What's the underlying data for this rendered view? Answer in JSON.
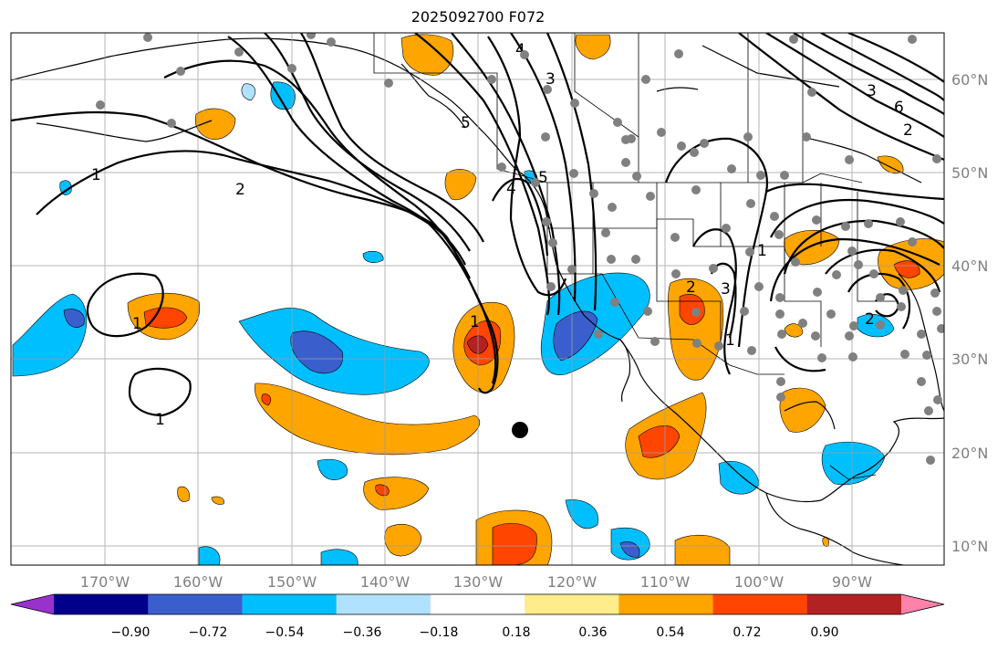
{
  "title": "2025092700 F072",
  "axes": {
    "x_ticks": [
      "170°W",
      "160°W",
      "150°W",
      "140°W",
      "130°W",
      "120°W",
      "110°W",
      "100°W",
      "90°W"
    ],
    "y_ticks": [
      "60°N",
      "50°N",
      "40°N",
      "30°N",
      "20°N",
      "10°N"
    ]
  },
  "colorbar": {
    "colors": [
      "#9932cc",
      "#00008b",
      "#3a5fcd",
      "#00bfff",
      "#b0e2ff",
      "#ffffff",
      "#ffec8b",
      "#ffa500",
      "#ff4500",
      "#b22222",
      "#ff82ab"
    ],
    "labels": [
      "−0.90",
      "−0.72",
      "−0.54",
      "−0.36",
      "−0.18",
      "0.18",
      "0.36",
      "0.54",
      "0.72",
      "0.90"
    ]
  },
  "contour_labels": [
    "1",
    "2",
    "3",
    "4",
    "5",
    "6",
    "1",
    "2",
    "3",
    "1",
    "2",
    "1",
    "2",
    "3",
    "4",
    "5",
    "1",
    "1"
  ],
  "map": {
    "projection": "plate carree",
    "lon_range": [
      -180,
      -80
    ],
    "lat_range": [
      8,
      65
    ],
    "station_marker_color": "#808080",
    "center_marker_color": "#000000"
  }
}
